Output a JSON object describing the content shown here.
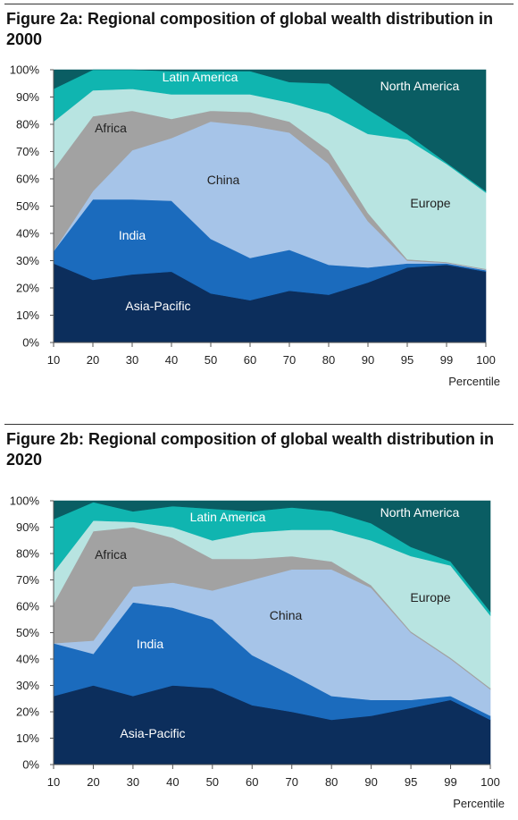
{
  "chart_data": [
    {
      "type": "area",
      "stacked": true,
      "title": "Figure 2a: Regional composition of global wealth distribution in 2000",
      "xlabel": "Percentile",
      "ylabel": "",
      "ylim": [
        0,
        100
      ],
      "x": [
        "10",
        "20",
        "30",
        "40",
        "50",
        "60",
        "70",
        "80",
        "90",
        "95",
        "99",
        "100"
      ],
      "yticks": [
        "0%",
        "10%",
        "20%",
        "30%",
        "40%",
        "50%",
        "60%",
        "70%",
        "80%",
        "90%",
        "100%"
      ],
      "series": [
        {
          "name": "Asia-Pacific",
          "color": "#0c2e5c",
          "values": [
            29,
            23,
            25,
            26,
            18,
            15.5,
            19,
            17.5,
            22,
            27.5,
            28.5,
            26
          ]
        },
        {
          "name": "India",
          "color": "#1b6bbd",
          "values": [
            4.5,
            29.5,
            27.5,
            26,
            20,
            15.5,
            15,
            11,
            5.5,
            1.5,
            0.5,
            0.5
          ]
        },
        {
          "name": "China",
          "color": "#a6c4e8",
          "values": [
            0,
            3,
            18,
            23,
            43,
            48.5,
            43,
            37,
            17,
            1,
            0.2,
            0.2
          ]
        },
        {
          "name": "Africa",
          "color": "#a2a2a2",
          "values": [
            30,
            27.5,
            14.5,
            7,
            4,
            5,
            4,
            5,
            3,
            0.5,
            0.3,
            0.3
          ]
        },
        {
          "name": "Europe",
          "color": "#b8e4e1",
          "values": [
            17.5,
            9.5,
            8,
            9,
            6,
            6.5,
            7,
            13.5,
            29,
            44,
            36,
            28
          ]
        },
        {
          "name": "Latin America",
          "color": "#10b5b0",
          "values": [
            12,
            7.5,
            7,
            8.5,
            8.5,
            8.5,
            7.5,
            11,
            9,
            2,
            0.5,
            0.5
          ]
        },
        {
          "name": "North America",
          "color": "#0a5d63",
          "values": [
            7,
            0,
            0,
            0.5,
            0.5,
            0.5,
            4.5,
            5,
            14.5,
            23.5,
            34,
            44.5
          ]
        }
      ]
    },
    {
      "type": "area",
      "stacked": true,
      "title": "Figure 2b: Regional composition of global wealth distribution in 2020",
      "xlabel": "Percentile",
      "ylabel": "",
      "ylim": [
        0,
        100
      ],
      "x": [
        "10",
        "20",
        "30",
        "40",
        "50",
        "60",
        "70",
        "80",
        "90",
        "95",
        "99",
        "100"
      ],
      "yticks": [
        "0%",
        "10%",
        "20%",
        "30%",
        "40%",
        "50%",
        "60%",
        "70%",
        "80%",
        "90%",
        "100%"
      ],
      "series": [
        {
          "name": "Asia-Pacific",
          "color": "#0c2e5c",
          "values": [
            26,
            30,
            26,
            30,
            29,
            22.5,
            20,
            17,
            18.5,
            21.5,
            24.5,
            17
          ]
        },
        {
          "name": "India",
          "color": "#1b6bbd",
          "values": [
            20,
            12,
            35.5,
            29.5,
            26,
            19,
            14,
            9,
            6,
            3,
            1.5,
            1.5
          ]
        },
        {
          "name": "China",
          "color": "#a6c4e8",
          "values": [
            0,
            5,
            6,
            9.5,
            11,
            28.5,
            40,
            48,
            42.5,
            25.5,
            14,
            10
          ]
        },
        {
          "name": "Africa",
          "color": "#a2a2a2",
          "values": [
            15,
            41.5,
            22.5,
            17,
            12,
            8,
            5,
            3,
            1,
            0.5,
            0.5,
            0.5
          ]
        },
        {
          "name": "Europe",
          "color": "#b8e4e1",
          "values": [
            12,
            4,
            2,
            4,
            7,
            10,
            10,
            12,
            17,
            28.5,
            35,
            27.5
          ]
        },
        {
          "name": "Latin America",
          "color": "#10b5b0",
          "values": [
            20,
            7,
            4,
            8,
            12,
            8,
            8.5,
            7,
            6.5,
            3.5,
            1.5,
            1.5
          ]
        },
        {
          "name": "North America",
          "color": "#0a5d63",
          "values": [
            7,
            0.5,
            4,
            2,
            3,
            4,
            2.5,
            4,
            8.5,
            17.5,
            23,
            42
          ]
        }
      ]
    }
  ]
}
